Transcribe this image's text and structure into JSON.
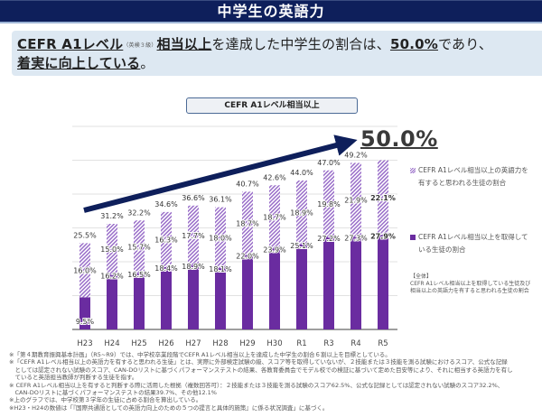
{
  "header": {
    "title": "中学生の英語力"
  },
  "headline": {
    "part1_bold": "CEFR A1レベル",
    "part1_small": "（英検３級）",
    "part2_bold": "相当以上",
    "part3": "を達成した中学生の割合は、",
    "part4_bold": "50.0%",
    "part5": "であり、",
    "line2_bold": "着実に向上している",
    "line2_end": "。"
  },
  "chart_title": "CEFR A1レベル相当以上",
  "highlight_value": "50.0%",
  "legend": [
    {
      "label_line1": "CEFR A1レベル相当以上の英語力を",
      "label_line2": "有すると思われる生徒の割合",
      "icon": "hatched-swatch"
    },
    {
      "label_line1": "CEFR A1レベル相当以上を取得して",
      "label_line2": "いる生徒の割合",
      "icon": "solid-swatch"
    }
  ],
  "note_all": {
    "title": "【全体】",
    "line1": "CEFR A1レベル相当以上を取得している生徒及び",
    "line2": "相当以上の英語力を有すると思われる生徒の割合"
  },
  "chart_data": {
    "type": "bar",
    "stacked": true,
    "title": "CEFR A1レベル相当以上",
    "categories": [
      "H23",
      "H24",
      "H25",
      "H26",
      "H27",
      "H28",
      "H29",
      "H30",
      "R1",
      "R3",
      "R4",
      "R5"
    ],
    "series": [
      {
        "name": "CEFR A1レベル相当以上を取得している生徒の割合",
        "style": "solid",
        "color": "#6a2ca0",
        "values": [
          9.5,
          16.2,
          16.5,
          18.4,
          18.9,
          18.1,
          22.0,
          23.9,
          25.1,
          27.2,
          27.3,
          27.9
        ]
      },
      {
        "name": "CEFR A1レベル相当以上の英語力を有すると思われる生徒の割合",
        "style": "hatched",
        "color": "#9a6fc9",
        "values": [
          16.0,
          15.0,
          15.7,
          16.3,
          17.7,
          18.0,
          18.7,
          18.7,
          18.9,
          19.8,
          21.9,
          22.1
        ]
      }
    ],
    "totals": [
      "25.5%",
      "31.2%",
      "32.2%",
      "34.6%",
      "36.6%",
      "36.1%",
      "40.7%",
      "42.6%",
      "44.0%",
      "47.0%",
      "49.2%",
      "50.0%"
    ],
    "ylim": [
      0,
      60
    ],
    "gridlines": [
      10,
      20,
      30,
      40,
      50,
      60
    ],
    "grid": true,
    "yaxis_visible": false,
    "legend_position": "right",
    "trend_arrow": true
  },
  "footnotes": [
    "※「第４期教育振興基本計画」（R5~R9）では、中学校卒業段階でCEFR A1レベル相当以上を達成した中学生の割合６割以上を目標としている。",
    "※「CEFR A1レベル相当以上の英語力を有すると思われる生徒」とは、実際に外部検定試験の級、スコア等を取得していないが、２技能または３技能を測る試験におけるスコア、公式な記録",
    "　としては認定されない試験のスコア、CAN-DOリストに基づくパフォーマンステストの結果、各教育委員会でモデル校での検証に基づいて定めた目安等により、それに相当する英語力を有し",
    "　ていると英語担当教師が判断する生徒を指す。",
    "※ CEFR A1レベル相当以上を有すると判断する際に活用した根拠（複数回答可）：２技能または３技能を測る試験のスコア62.5%、公式な記録としては認定されない試験のスコア32.2%、",
    "　CAN-DOリストに基づくパフォーマンステストの結果39.7%、その他12.1%",
    "※上のグラフでは、中学校第３学年の生徒に占める割合を算出している。",
    "※H23・H24の数値は「『国際共通語としての英語力向上のための５つの提言と具体的施策』に係る状況調査」に基づく。"
  ]
}
